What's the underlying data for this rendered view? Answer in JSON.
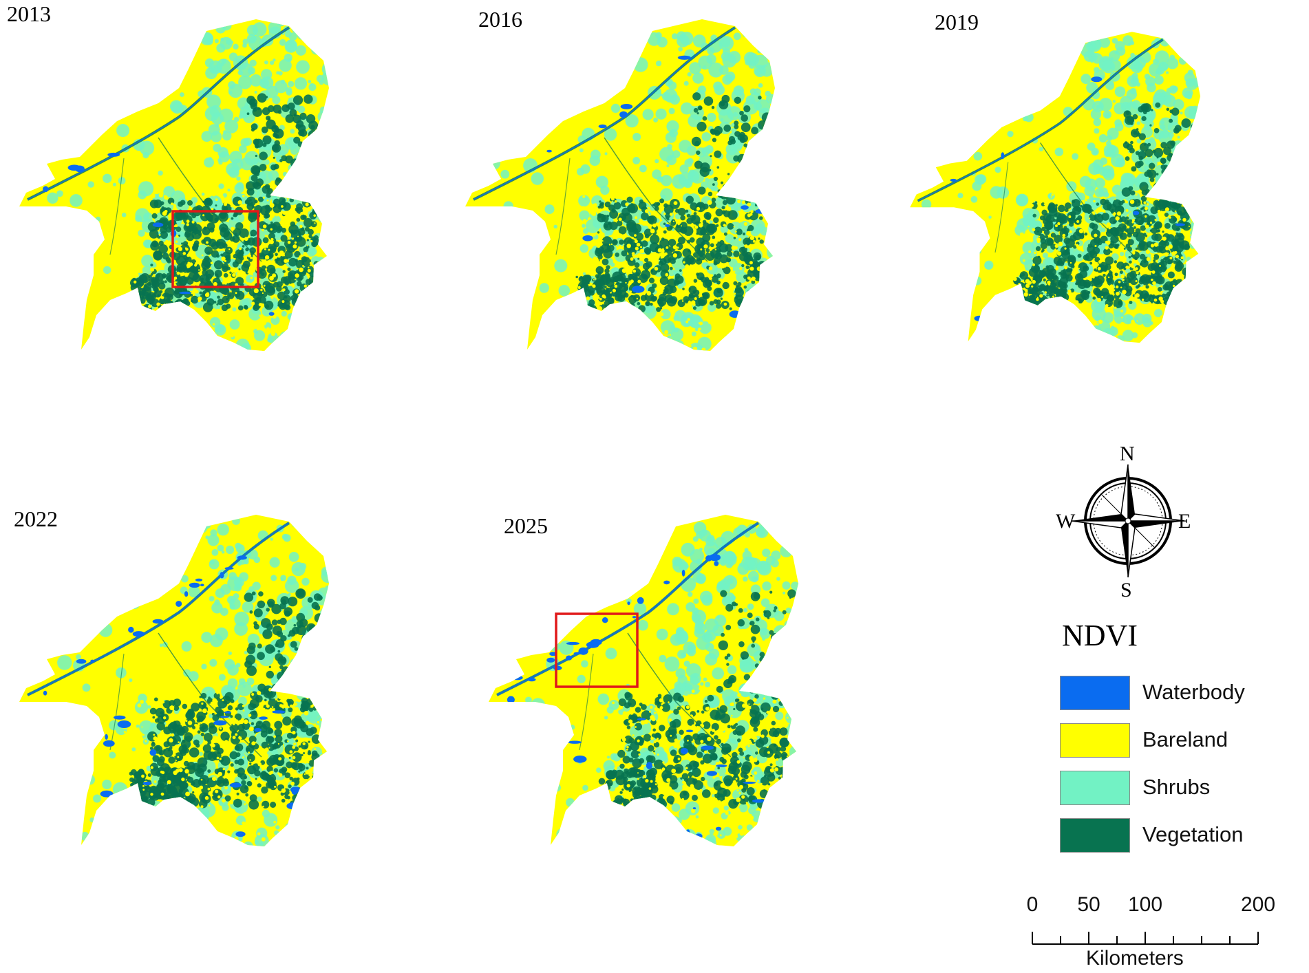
{
  "panels": [
    {
      "year": "2013",
      "highlight": true
    },
    {
      "year": "2016",
      "highlight": false
    },
    {
      "year": "2019",
      "highlight": false
    },
    {
      "year": "2022",
      "highlight": false
    },
    {
      "year": "2025",
      "highlight": true
    }
  ],
  "compass": {
    "north": "N",
    "south": "S",
    "east": "E",
    "west": "W"
  },
  "legend": {
    "title": "NDVI",
    "items": [
      {
        "label": "Waterbody",
        "color": "#0a6cf0"
      },
      {
        "label": "Bareland",
        "color": "#ffff00"
      },
      {
        "label": "Shrubs",
        "color": "#72f2c4"
      },
      {
        "label": "Vegetation",
        "color": "#087350"
      }
    ]
  },
  "scale_bar": {
    "tick_labels": [
      "0",
      "50",
      "100",
      "200"
    ],
    "tick_values": [
      0,
      50,
      100,
      200
    ],
    "max_value": 200,
    "unit": "Kilometers"
  },
  "colors": {
    "highlight_box": "#e0191a",
    "bareland": "#ffff00",
    "shrubs": "#72f2c4",
    "vegetation": "#087350",
    "waterbody": "#0a6cf0"
  }
}
